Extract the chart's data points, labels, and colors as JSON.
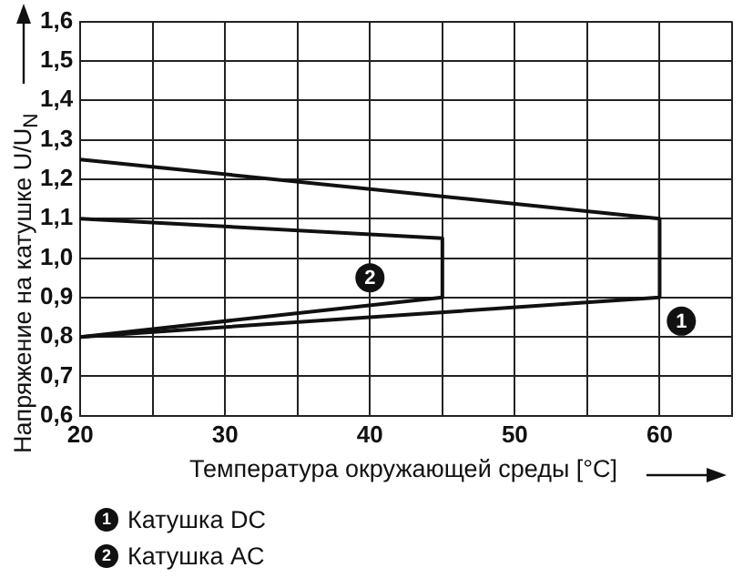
{
  "chart_data": {
    "type": "line",
    "xlabel": "Температура окружающей среды [°C]",
    "ylabel": "Напряжение на катушке U/U$_{N}$",
    "series": [
      {
        "name": "Катушка DC",
        "color": "#111111",
        "x": [
          20,
          60,
          60,
          20
        ],
        "values": [
          1.25,
          1.1,
          0.9,
          0.8
        ]
      },
      {
        "name": "Катушка AC",
        "color": "#111111",
        "x": [
          20,
          45,
          45,
          20
        ],
        "values": [
          1.1,
          1.05,
          0.9,
          0.8
        ]
      }
    ],
    "xlim": [
      20,
      65
    ],
    "xticks": [
      20,
      {
        "value": 25,
        "label": null
      },
      30,
      {
        "value": 35,
        "label": null
      },
      40,
      {
        "value": 45,
        "label": null
      },
      50,
      {
        "value": 55,
        "label": null
      },
      60,
      {
        "value": 65,
        "label": null
      }
    ],
    "ylim": [
      0.6,
      1.6
    ],
    "yticks": [
      {
        "value": 0.6,
        "label": "0,6"
      },
      {
        "value": 0.7,
        "label": "0,7"
      },
      {
        "value": 0.8,
        "label": "0,8"
      },
      {
        "value": 0.9,
        "label": "0,9"
      },
      {
        "value": 1.0,
        "label": "1,0"
      },
      {
        "value": 1.1,
        "label": "1,1"
      },
      {
        "value": 1.2,
        "label": "1,2"
      },
      {
        "value": 1.3,
        "label": "1,3"
      },
      {
        "value": 1.4,
        "label": "1,4"
      },
      {
        "value": 1.5,
        "label": "1,5"
      },
      {
        "value": 1.6,
        "label": "1,6"
      }
    ],
    "grid": true,
    "legend": "bottom",
    "marker": "none",
    "line_style": "solid",
    "annotations": [
      {
        "text": "1",
        "x": 61.5,
        "y": 0.84
      },
      {
        "text": "2",
        "x": 40,
        "y": 0.95
      }
    ]
  }
}
